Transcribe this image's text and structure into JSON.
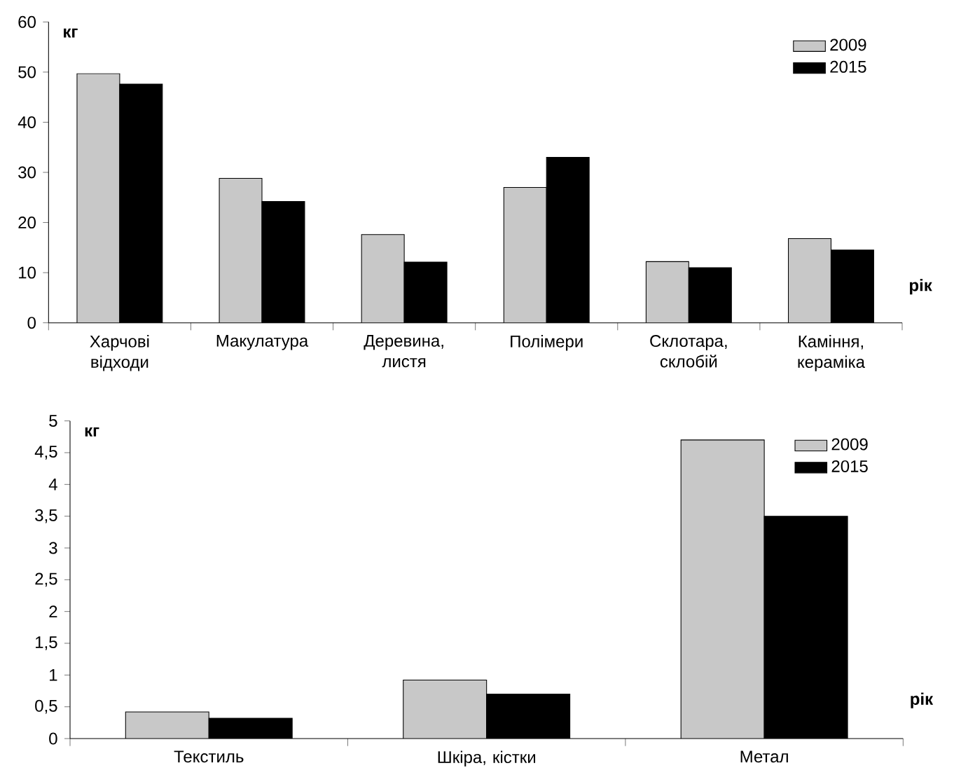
{
  "chart_data": [
    {
      "type": "bar",
      "categories": [
        "Харчові відходи",
        "Макулатура",
        "Деревина, листя",
        "Полімери",
        "Склотара, склобій",
        "Каміння, кераміка"
      ],
      "series": [
        {
          "name": "2009",
          "color": "#c8c8c8",
          "values": [
            49.7,
            28.8,
            17.6,
            27,
            12.2,
            16.8
          ]
        },
        {
          "name": "2015",
          "color": "#000000",
          "values": [
            47.6,
            24.2,
            12.1,
            33,
            11,
            14.5
          ]
        }
      ],
      "ylim": [
        0,
        60
      ],
      "yticks": [
        0,
        10,
        20,
        30,
        40,
        50,
        60
      ],
      "ylabel": "кг",
      "xlabel": "рік",
      "legend": "top right"
    },
    {
      "type": "bar",
      "categories": [
        "Текстиль",
        "Шкіра, кістки",
        "Метал"
      ],
      "series": [
        {
          "name": "2009",
          "color": "#c8c8c8",
          "values": [
            0.42,
            0.92,
            4.7
          ]
        },
        {
          "name": "2015",
          "color": "#000000",
          "values": [
            0.32,
            0.7,
            3.5
          ]
        }
      ],
      "ylim": [
        0,
        5
      ],
      "yticks": [
        0,
        {
          "value": 0.5,
          "label": "0,5"
        },
        1,
        {
          "value": 1.5,
          "label": "1,5"
        },
        2,
        {
          "value": 2.5,
          "label": "2,5"
        },
        3,
        {
          "value": 3.5,
          "label": "3,5"
        },
        4,
        {
          "value": 4.5,
          "label": "4,5"
        },
        5
      ],
      "ylabel": "кг",
      "xlabel": "рік",
      "legend": "top right"
    }
  ]
}
